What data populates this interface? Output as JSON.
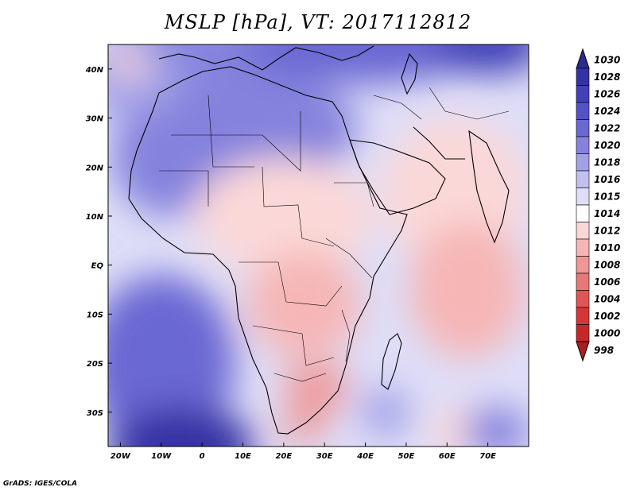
{
  "title": "MSLP [hPa], VT: 2017112812",
  "credit": "GrADS: IGES/COLA",
  "map": {
    "lon_range": [
      -23,
      80
    ],
    "lat_range": [
      -37,
      45
    ],
    "lon_ticks": [
      {
        "value": -20,
        "label": "20W"
      },
      {
        "value": -10,
        "label": "10W"
      },
      {
        "value": 0,
        "label": "0"
      },
      {
        "value": 10,
        "label": "10E"
      },
      {
        "value": 20,
        "label": "20E"
      },
      {
        "value": 30,
        "label": "30E"
      },
      {
        "value": 40,
        "label": "40E"
      },
      {
        "value": 50,
        "label": "50E"
      },
      {
        "value": 60,
        "label": "60E"
      },
      {
        "value": 70,
        "label": "70E"
      }
    ],
    "lat_ticks": [
      {
        "value": 40,
        "label": "40N"
      },
      {
        "value": 30,
        "label": "30N"
      },
      {
        "value": 20,
        "label": "20N"
      },
      {
        "value": 10,
        "label": "10N"
      },
      {
        "value": 0,
        "label": "EQ"
      },
      {
        "value": -10,
        "label": "10S"
      },
      {
        "value": -20,
        "label": "20S"
      },
      {
        "value": -30,
        "label": "30S"
      }
    ]
  },
  "colorbar": {
    "levels": [
      "1030",
      "1028",
      "1026",
      "1024",
      "1022",
      "1020",
      "1018",
      "1016",
      "1015",
      "1014",
      "1012",
      "1010",
      "1008",
      "1006",
      "1004",
      "1002",
      "1000",
      "998"
    ],
    "colors": [
      "#2b2a8e",
      "#3533a3",
      "#4140b8",
      "#5452c8",
      "#6a68d3",
      "#8482dd",
      "#a2a1e7",
      "#c0c0f0",
      "#dedef8",
      "#ffffff",
      "#fbd8d8",
      "#f6b6b6",
      "#ef9696",
      "#e87777",
      "#e05656",
      "#d53737",
      "#c62828",
      "#a81f1f"
    ]
  },
  "pressure_field": {
    "background": 1015,
    "features": [
      {
        "lon": 5,
        "lat": 45,
        "rlon": 28,
        "rlat": 6,
        "value": 1020
      },
      {
        "lon": 40,
        "lat": 45,
        "rlon": 30,
        "rlat": 8,
        "value": 1022
      },
      {
        "lon": 70,
        "lat": 45,
        "rlon": 14,
        "rlat": 6,
        "value": 1026
      },
      {
        "lon": 10,
        "lat": 28,
        "rlon": 28,
        "rlat": 12,
        "value": 1019
      },
      {
        "lon": -8,
        "lat": 22,
        "rlon": 14,
        "rlat": 12,
        "value": 1019
      },
      {
        "lon": -18,
        "lat": 38,
        "rlon": 12,
        "rlat": 8,
        "value": 1018
      },
      {
        "lon": -18,
        "lat": 41,
        "rlon": 5,
        "rlat": 3,
        "value": 1012
      },
      {
        "lon": 20,
        "lat": 10,
        "rlon": 22,
        "rlat": 12,
        "value": 1012
      },
      {
        "lon": 62,
        "lat": 15,
        "rlon": 18,
        "rlat": 15,
        "value": 1011
      },
      {
        "lon": 25,
        "lat": -8,
        "rlon": 14,
        "rlat": 11,
        "value": 1009
      },
      {
        "lon": 65,
        "lat": -5,
        "rlon": 14,
        "rlat": 14,
        "value": 1010
      },
      {
        "lon": 28,
        "lat": -25,
        "rlon": 8,
        "rlat": 5,
        "value": 1008
      },
      {
        "lon": 25,
        "lat": -33,
        "rlon": 6,
        "rlat": 3,
        "value": 1008
      },
      {
        "lon": -10,
        "lat": -20,
        "rlon": 18,
        "rlat": 18,
        "value": 1022
      },
      {
        "lon": -5,
        "lat": -37,
        "rlon": 18,
        "rlat": 8,
        "value": 1028
      },
      {
        "lon": 45,
        "lat": -30,
        "rlon": 6,
        "rlat": 5,
        "value": 1018
      },
      {
        "lon": 62,
        "lat": -34,
        "rlon": 6,
        "rlat": 5,
        "value": 1012
      },
      {
        "lon": 72,
        "lat": -34,
        "rlon": 8,
        "rlat": 5,
        "value": 1020
      }
    ]
  }
}
